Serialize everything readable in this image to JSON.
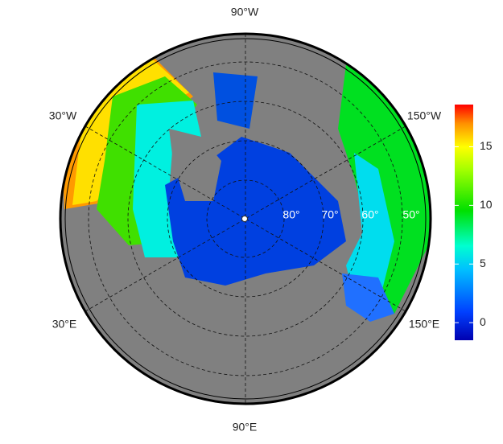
{
  "map": {
    "meridian_labels": [
      "90°W",
      "30°W",
      "150°W",
      "30°E",
      "150°E",
      "90°E"
    ],
    "parallel_labels": [
      "80°",
      "70°",
      "60°",
      "50°"
    ],
    "colorbar": {
      "ylim": [
        -1.5,
        18.6
      ],
      "ticks": [
        0,
        5,
        10,
        15
      ]
    }
  }
}
